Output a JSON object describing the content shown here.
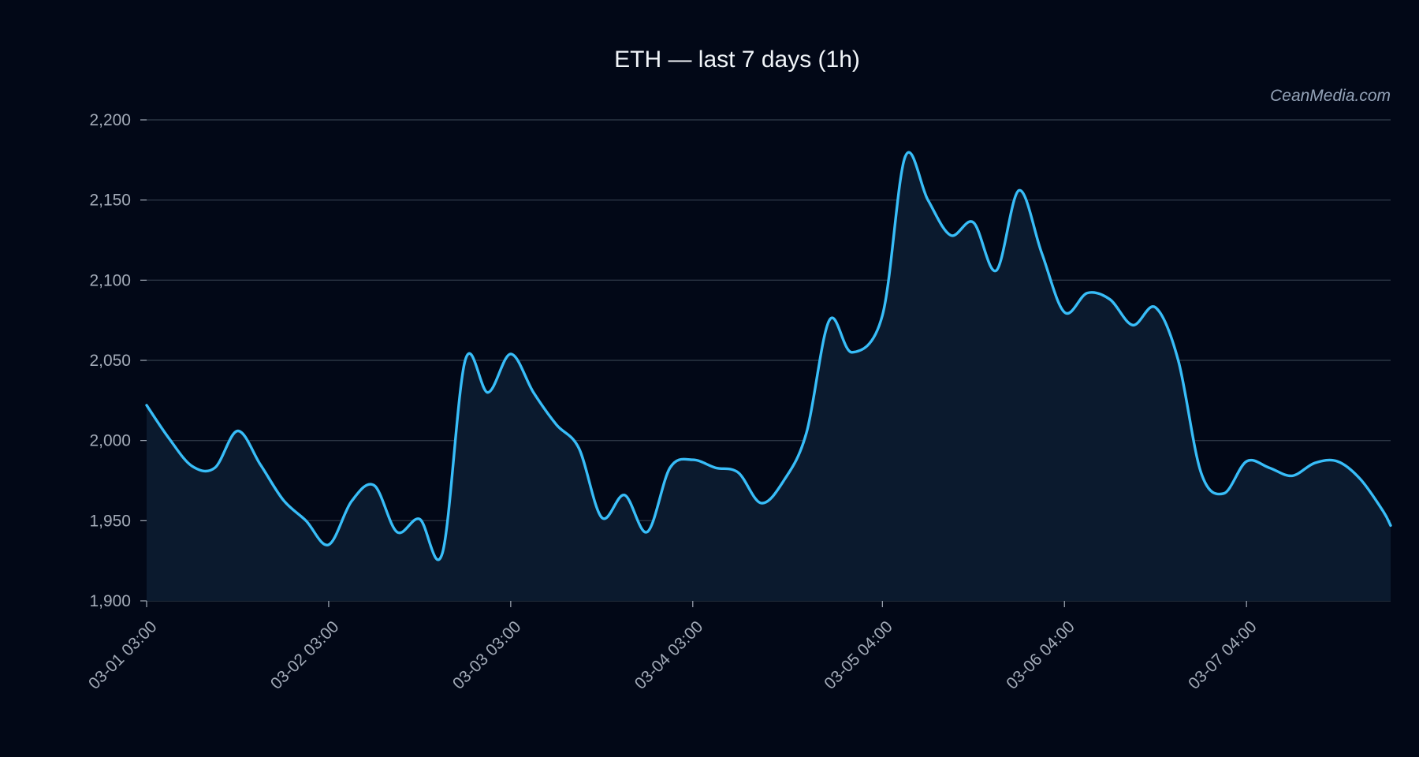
{
  "chart_data": {
    "type": "line",
    "title": "ETH — last 7 days (1h)",
    "watermark": "CeanMedia.com",
    "xlabel": "",
    "ylabel": "",
    "ylim": [
      1900,
      2200
    ],
    "yticks": [
      1900,
      1950,
      2000,
      2050,
      2100,
      2150,
      2200
    ],
    "ytick_labels": [
      "1,900",
      "1,950",
      "2,000",
      "2,050",
      "2,100",
      "2,150",
      "2,200"
    ],
    "xlim": [
      "03-01 03:00",
      "03-07 23:00"
    ],
    "xticks": [
      "03-01 03:00",
      "03-02 03:00",
      "03-03 03:00",
      "03-04 03:00",
      "03-05 04:00",
      "03-06 04:00",
      "03-07 04:00"
    ],
    "grid": "horizontal",
    "area_fill": true,
    "colors": {
      "line": "#38bdf8",
      "area": "#0b1a2e",
      "grid": "#2b3544",
      "background": "#020817",
      "text": "#f1f5f9",
      "tick": "#a3abb8"
    },
    "series": [
      {
        "x": [
          "03-01 03:00",
          "03-01 06:00",
          "03-01 09:00",
          "03-01 12:00",
          "03-01 15:00",
          "03-01 18:00",
          "03-01 21:00",
          "03-02 00:00",
          "03-02 03:00",
          "03-02 06:00",
          "03-02 09:00",
          "03-02 12:00",
          "03-02 15:00",
          "03-02 18:00",
          "03-02 21:00",
          "03-03 00:00",
          "03-03 03:00",
          "03-03 06:00",
          "03-03 09:00",
          "03-03 12:00",
          "03-03 15:00",
          "03-03 18:00",
          "03-03 21:00",
          "03-04 00:00",
          "03-04 03:00",
          "03-04 06:00",
          "03-04 09:00",
          "03-04 12:00",
          "03-04 15:00",
          "03-04 18:00",
          "03-04 21:00",
          "03-05 00:00",
          "03-05 04:00",
          "03-05 07:00",
          "03-05 10:00",
          "03-05 13:00",
          "03-05 16:00",
          "03-05 19:00",
          "03-05 22:00",
          "03-06 01:00",
          "03-06 04:00",
          "03-06 07:00",
          "03-06 10:00",
          "03-06 13:00",
          "03-06 16:00",
          "03-06 19:00",
          "03-06 22:00",
          "03-07 01:00",
          "03-07 04:00",
          "03-07 07:00",
          "03-07 10:00",
          "03-07 13:00",
          "03-07 16:00",
          "03-07 19:00",
          "03-07 22:00",
          "03-07 23:00"
        ],
        "values": [
          2022,
          2001,
          1984,
          1983,
          2006,
          1985,
          1963,
          1950,
          1935,
          1962,
          1972,
          1943,
          1951,
          1930,
          2050,
          2030,
          2054,
          2030,
          2010,
          1995,
          1952,
          1966,
          1943,
          1983,
          1988,
          1983,
          1980,
          1961,
          1975,
          2005,
          2075,
          2055,
          2078,
          2177,
          2150,
          2128,
          2136,
          2106,
          2156,
          2117,
          2080,
          2092,
          2088,
          2072,
          2083,
          2050,
          1980,
          1967,
          1987,
          1983,
          1978,
          1986,
          1987,
          1976,
          1956,
          1947
        ]
      }
    ]
  }
}
